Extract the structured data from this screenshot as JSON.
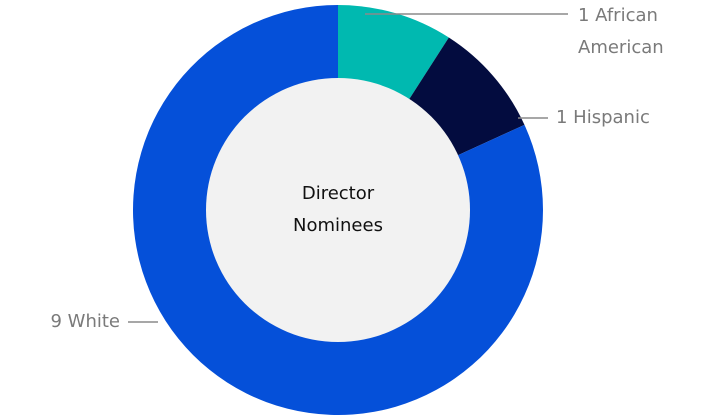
{
  "chart_data": {
    "type": "donut",
    "title": "Director Nominees",
    "categories": [
      "African American",
      "Hispanic",
      "White"
    ],
    "values": [
      1,
      1,
      9
    ],
    "value_labels": [
      "1 African American",
      "1 Hispanic",
      "9 White"
    ],
    "colors": [
      "#00b9b0",
      "#030c3f",
      "#0550d9"
    ],
    "hole_color": "#f2f2f2"
  }
}
